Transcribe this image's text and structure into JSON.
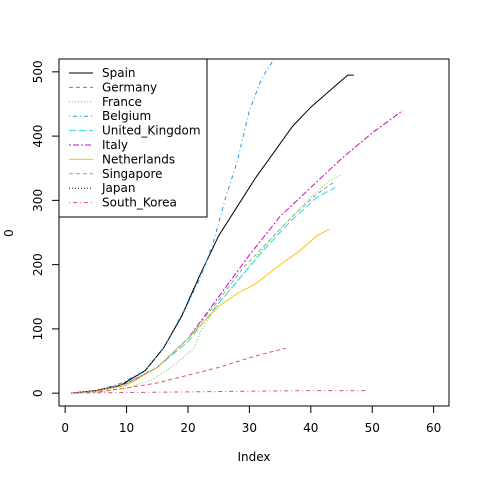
{
  "chart_data": {
    "type": "line",
    "xlabel": "Index",
    "ylabel": "0",
    "xlim": [
      -1,
      62.5
    ],
    "ylim": [
      -20,
      520
    ],
    "xticks": [
      0,
      10,
      20,
      30,
      40,
      50,
      60
    ],
    "yticks": [
      0,
      100,
      200,
      300,
      400,
      500
    ],
    "legend_position": "top-left",
    "series": [
      {
        "name": "Spain",
        "color": "#000000",
        "dash": "solid",
        "points": [
          [
            1,
            0
          ],
          [
            5,
            4
          ],
          [
            9,
            12
          ],
          [
            13,
            35
          ],
          [
            16,
            70
          ],
          [
            19,
            120
          ],
          [
            22,
            185
          ],
          [
            25,
            245
          ],
          [
            28,
            290
          ],
          [
            31,
            335
          ],
          [
            34,
            375
          ],
          [
            37,
            415
          ],
          [
            40,
            445
          ],
          [
            43,
            470
          ],
          [
            46,
            495
          ],
          [
            47,
            495
          ]
        ]
      },
      {
        "name": "Germany",
        "color": "#DF536B",
        "dash": "dashed",
        "points": [
          [
            1,
            0
          ],
          [
            5,
            2
          ],
          [
            10,
            8
          ],
          [
            15,
            16
          ],
          [
            20,
            28
          ],
          [
            25,
            40
          ],
          [
            30,
            55
          ],
          [
            33,
            63
          ],
          [
            36,
            70
          ]
        ]
      },
      {
        "name": "France",
        "color": "#61D04F",
        "dash": "dotted",
        "points": [
          [
            1,
            0
          ],
          [
            6,
            2
          ],
          [
            10,
            8
          ],
          [
            14,
            20
          ],
          [
            18,
            45
          ],
          [
            21,
            70
          ],
          [
            22,
            95
          ],
          [
            25,
            140
          ],
          [
            28,
            175
          ],
          [
            31,
            210
          ],
          [
            34,
            245
          ],
          [
            37,
            275
          ],
          [
            40,
            305
          ],
          [
            43,
            330
          ],
          [
            45,
            340
          ]
        ]
      },
      {
        "name": "Belgium",
        "color": "#2297E6",
        "dash": "dotdash",
        "points": [
          [
            1,
            0
          ],
          [
            5,
            4
          ],
          [
            9,
            15
          ],
          [
            13,
            35
          ],
          [
            16,
            70
          ],
          [
            20,
            140
          ],
          [
            22,
            180
          ],
          [
            24,
            230
          ],
          [
            26,
            300
          ],
          [
            28,
            360
          ],
          [
            29,
            400
          ],
          [
            30,
            440
          ],
          [
            32,
            490
          ],
          [
            34,
            520
          ]
        ]
      },
      {
        "name": "United_Kingdom",
        "color": "#28E2E5",
        "dash": "longdash",
        "points": [
          [
            1,
            0
          ],
          [
            5,
            3
          ],
          [
            10,
            15
          ],
          [
            15,
            40
          ],
          [
            20,
            80
          ],
          [
            25,
            140
          ],
          [
            29,
            185
          ],
          [
            33,
            230
          ],
          [
            37,
            270
          ],
          [
            41,
            305
          ],
          [
            44,
            320
          ]
        ]
      },
      {
        "name": "Italy",
        "color": "#CD0BBC",
        "dash": "twodash",
        "points": [
          [
            1,
            0
          ],
          [
            5,
            4
          ],
          [
            10,
            15
          ],
          [
            15,
            40
          ],
          [
            20,
            85
          ],
          [
            25,
            150
          ],
          [
            30,
            215
          ],
          [
            35,
            275
          ],
          [
            40,
            320
          ],
          [
            45,
            365
          ],
          [
            50,
            405
          ],
          [
            55,
            440
          ]
        ]
      },
      {
        "name": "Netherlands",
        "color": "#F5C710",
        "dash": "solid",
        "points": [
          [
            1,
            0
          ],
          [
            5,
            3
          ],
          [
            10,
            12
          ],
          [
            15,
            40
          ],
          [
            20,
            85
          ],
          [
            25,
            135
          ],
          [
            28,
            155
          ],
          [
            31,
            170
          ],
          [
            35,
            200
          ],
          [
            38,
            220
          ],
          [
            41,
            245
          ],
          [
            43,
            255
          ]
        ]
      },
      {
        "name": "Singapore",
        "color": "#9E9E9E",
        "dash": "dashed",
        "points": [
          [
            1,
            0
          ],
          [
            5,
            3
          ],
          [
            10,
            15
          ],
          [
            15,
            40
          ],
          [
            20,
            85
          ],
          [
            25,
            145
          ],
          [
            29,
            195
          ],
          [
            33,
            235
          ],
          [
            37,
            275
          ],
          [
            41,
            310
          ],
          [
            44,
            330
          ]
        ]
      },
      {
        "name": "Japan",
        "color": "#000000",
        "dash": "dotted",
        "points": [
          [
            1,
            0
          ],
          [
            5,
            4
          ],
          [
            9,
            12
          ],
          [
            13,
            35
          ],
          [
            16,
            70
          ],
          [
            19,
            120
          ],
          [
            21,
            165
          ]
        ]
      },
      {
        "name": "South_Korea",
        "color": "#DF536B",
        "dash": "dotdash",
        "points": [
          [
            1,
            0
          ],
          [
            10,
            1
          ],
          [
            20,
            2
          ],
          [
            30,
            3
          ],
          [
            40,
            4
          ],
          [
            49,
            4
          ]
        ]
      }
    ]
  }
}
